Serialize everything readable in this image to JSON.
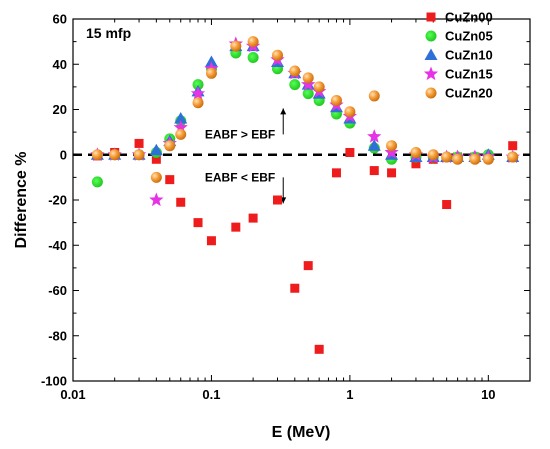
{
  "chart_data": {
    "type": "scatter",
    "panel_label": "15 mfp",
    "xlabel": "E (MeV)",
    "ylabel": "Difference %",
    "x_scale": "log",
    "xlim": [
      0.01,
      20
    ],
    "ylim": [
      -100,
      60
    ],
    "x_ticks": [
      0.01,
      0.1,
      1,
      10
    ],
    "x_tick_labels": [
      "0.01",
      "0.1",
      "1",
      "10"
    ],
    "y_ticks": [
      -100,
      -80,
      -60,
      -40,
      -20,
      0,
      20,
      40,
      60
    ],
    "y_tick_labels": [
      "-100",
      "-80",
      "-60",
      "-40",
      "-20",
      "0",
      "20",
      "40",
      "60"
    ],
    "reference_line": {
      "y": 0,
      "style": "dashed",
      "color": "#000000"
    },
    "annotations": [
      {
        "text": "EABF > EBF",
        "x": 0.33,
        "y": 9,
        "arrow": "up"
      },
      {
        "text": "EABF < EBF",
        "x": 0.33,
        "y": -10,
        "arrow": "down"
      }
    ],
    "legend_position": "top-right",
    "series": [
      {
        "name": "CuZn00",
        "marker": "square",
        "color": "#ee1c1c",
        "x": [
          0.015,
          0.02,
          0.03,
          0.04,
          0.05,
          0.06,
          0.08,
          0.1,
          0.15,
          0.2,
          0.3,
          0.4,
          0.5,
          0.6,
          0.8,
          1,
          1.5,
          2,
          3,
          4,
          5,
          6,
          8,
          10,
          15
        ],
        "y": [
          -0.5,
          1,
          5,
          -2,
          -11,
          -21,
          -30,
          -38,
          -32,
          -28,
          -20,
          -59,
          -49,
          -86,
          -8,
          1,
          -7,
          -8,
          -4,
          -2,
          -22,
          -1,
          -1,
          -1,
          4
        ]
      },
      {
        "name": "CuZn05",
        "marker": "circle",
        "color": "#22dd22",
        "x": [
          0.015,
          0.02,
          0.03,
          0.04,
          0.05,
          0.06,
          0.08,
          0.1,
          0.15,
          0.2,
          0.3,
          0.4,
          0.5,
          0.6,
          0.8,
          1,
          1.5,
          2,
          3,
          4,
          5,
          6,
          8,
          10,
          15
        ],
        "y": [
          -12,
          0,
          0,
          1,
          7,
          15,
          31,
          38,
          45,
          43,
          38,
          31,
          27,
          24,
          18,
          14,
          3,
          -2,
          -1,
          -1,
          -1,
          -1,
          -1,
          0,
          -1
        ]
      },
      {
        "name": "CuZn10",
        "marker": "triangle",
        "color": "#2f6fd8",
        "x": [
          0.015,
          0.02,
          0.03,
          0.04,
          0.05,
          0.06,
          0.08,
          0.1,
          0.15,
          0.2,
          0.3,
          0.4,
          0.5,
          0.6,
          0.8,
          1,
          1.5,
          2,
          3,
          4,
          5,
          6,
          8,
          10,
          15
        ],
        "y": [
          0,
          0,
          0,
          2,
          6,
          16,
          28,
          41,
          48,
          48,
          41,
          36,
          31,
          27,
          21,
          16,
          4,
          0,
          -1,
          -1,
          -1,
          -1,
          -1,
          0,
          -1
        ]
      },
      {
        "name": "CuZn15",
        "marker": "star",
        "color": "#e633e6",
        "x": [
          0.015,
          0.02,
          0.03,
          0.04,
          0.05,
          0.06,
          0.08,
          0.1,
          0.15,
          0.2,
          0.3,
          0.4,
          0.5,
          0.6,
          0.8,
          1,
          1.5,
          2,
          3,
          4,
          5,
          6,
          8,
          10,
          15
        ],
        "y": [
          0,
          0,
          0,
          -20,
          5,
          12,
          27,
          38,
          49,
          48,
          42,
          36,
          31,
          28,
          22,
          17,
          8,
          1,
          0,
          -1,
          -1,
          -1,
          -1,
          -1,
          -1
        ]
      },
      {
        "name": "CuZn20",
        "marker": "sphere",
        "color": "#f5901e",
        "x": [
          0.015,
          0.02,
          0.03,
          0.04,
          0.05,
          0.06,
          0.08,
          0.1,
          0.15,
          0.2,
          0.3,
          0.4,
          0.5,
          0.6,
          0.8,
          1,
          1.5,
          2,
          3,
          4,
          5,
          6,
          8,
          10,
          15
        ],
        "y": [
          0,
          0,
          0,
          -10,
          4,
          9,
          23,
          36,
          48,
          50,
          44,
          37,
          34,
          30,
          24,
          19,
          26,
          4,
          1,
          0,
          -1,
          -2,
          -2,
          -2,
          -1
        ]
      }
    ]
  }
}
